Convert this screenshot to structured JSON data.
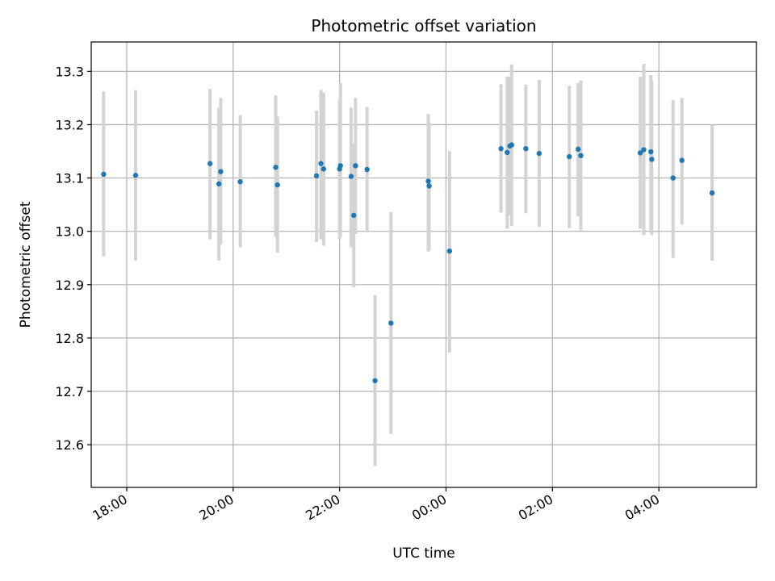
{
  "chart_data": {
    "type": "scatter",
    "title": "Photometric offset variation",
    "xlabel": "UTC time",
    "ylabel": "Photometric offset",
    "x_tick_labels": [
      "18:00",
      "20:00",
      "22:00",
      "00:00",
      "02:00",
      "04:00"
    ],
    "y_tick_labels": [
      "12.6",
      "12.7",
      "12.8",
      "12.9",
      "13.0",
      "13.1",
      "13.2",
      "13.3"
    ],
    "xlim": [
      "17:20",
      "05:50"
    ],
    "ylim": [
      12.52,
      13.355
    ],
    "grid": true,
    "colors": {
      "points": "#1f77b4",
      "errorbars": "#d3d3d3",
      "grid": "#b0b0b0"
    },
    "points": [
      {
        "t": "17:34",
        "y": 13.107,
        "err_low": 12.953,
        "err_high": 13.262
      },
      {
        "t": "18:10",
        "y": 13.105,
        "err_low": 12.945,
        "err_high": 13.265
      },
      {
        "t": "19:34",
        "y": 13.127,
        "err_low": 12.985,
        "err_high": 13.267
      },
      {
        "t": "19:44",
        "y": 13.089,
        "err_low": 12.945,
        "err_high": 13.232
      },
      {
        "t": "19:46",
        "y": 13.112,
        "err_low": 12.975,
        "err_high": 13.25
      },
      {
        "t": "20:08",
        "y": 13.093,
        "err_low": 12.97,
        "err_high": 13.218
      },
      {
        "t": "20:48",
        "y": 13.12,
        "err_low": 12.99,
        "err_high": 13.255
      },
      {
        "t": "20:50",
        "y": 13.087,
        "err_low": 12.96,
        "err_high": 13.215
      },
      {
        "t": "21:34",
        "y": 13.104,
        "err_low": 12.98,
        "err_high": 13.226
      },
      {
        "t": "21:39",
        "y": 13.127,
        "err_low": 12.985,
        "err_high": 13.265
      },
      {
        "t": "21:42",
        "y": 13.117,
        "err_low": 12.973,
        "err_high": 13.26
      },
      {
        "t": "22:00",
        "y": 13.117,
        "err_low": 12.985,
        "err_high": 13.248
      },
      {
        "t": "22:01",
        "y": 13.123,
        "err_low": 12.99,
        "err_high": 13.278
      },
      {
        "t": "22:13",
        "y": 13.103,
        "err_low": 12.97,
        "err_high": 13.232
      },
      {
        "t": "22:16",
        "y": 13.03,
        "err_low": 12.895,
        "err_high": 13.165
      },
      {
        "t": "22:18",
        "y": 13.123,
        "err_low": 12.995,
        "err_high": 13.25
      },
      {
        "t": "22:31",
        "y": 13.116,
        "err_low": 12.998,
        "err_high": 13.233
      },
      {
        "t": "22:40",
        "y": 12.72,
        "err_low": 12.56,
        "err_high": 12.88
      },
      {
        "t": "22:58",
        "y": 12.828,
        "err_low": 12.62,
        "err_high": 13.036
      },
      {
        "t": "23:40",
        "y": 13.094,
        "err_low": 12.962,
        "err_high": 13.22
      },
      {
        "t": "23:41",
        "y": 13.085,
        "err_low": 12.965,
        "err_high": 13.205
      },
      {
        "t": "00:04",
        "y": 12.963,
        "err_low": 12.773,
        "err_high": 13.15
      },
      {
        "t": "01:02",
        "y": 13.155,
        "err_low": 13.035,
        "err_high": 13.276
      },
      {
        "t": "01:09",
        "y": 13.148,
        "err_low": 13.005,
        "err_high": 13.29
      },
      {
        "t": "01:12",
        "y": 13.16,
        "err_low": 13.03,
        "err_high": 13.29
      },
      {
        "t": "01:14",
        "y": 13.162,
        "err_low": 13.01,
        "err_high": 13.313
      },
      {
        "t": "01:30",
        "y": 13.155,
        "err_low": 13.034,
        "err_high": 13.275
      },
      {
        "t": "01:45",
        "y": 13.146,
        "err_low": 13.008,
        "err_high": 13.284
      },
      {
        "t": "02:19",
        "y": 13.14,
        "err_low": 13.006,
        "err_high": 13.273
      },
      {
        "t": "02:29",
        "y": 13.154,
        "err_low": 13.028,
        "err_high": 13.278
      },
      {
        "t": "02:32",
        "y": 13.142,
        "err_low": 13.002,
        "err_high": 13.283
      },
      {
        "t": "03:39",
        "y": 13.147,
        "err_low": 13.005,
        "err_high": 13.29
      },
      {
        "t": "03:43",
        "y": 13.153,
        "err_low": 12.993,
        "err_high": 13.314
      },
      {
        "t": "03:51",
        "y": 13.149,
        "err_low": 13.0,
        "err_high": 13.293
      },
      {
        "t": "03:52",
        "y": 13.135,
        "err_low": 12.993,
        "err_high": 13.282
      },
      {
        "t": "04:16",
        "y": 13.1,
        "err_low": 12.95,
        "err_high": 13.246
      },
      {
        "t": "04:26",
        "y": 13.133,
        "err_low": 13.013,
        "err_high": 13.25
      },
      {
        "t": "05:00",
        "y": 13.072,
        "err_low": 12.945,
        "err_high": 13.2
      }
    ]
  }
}
